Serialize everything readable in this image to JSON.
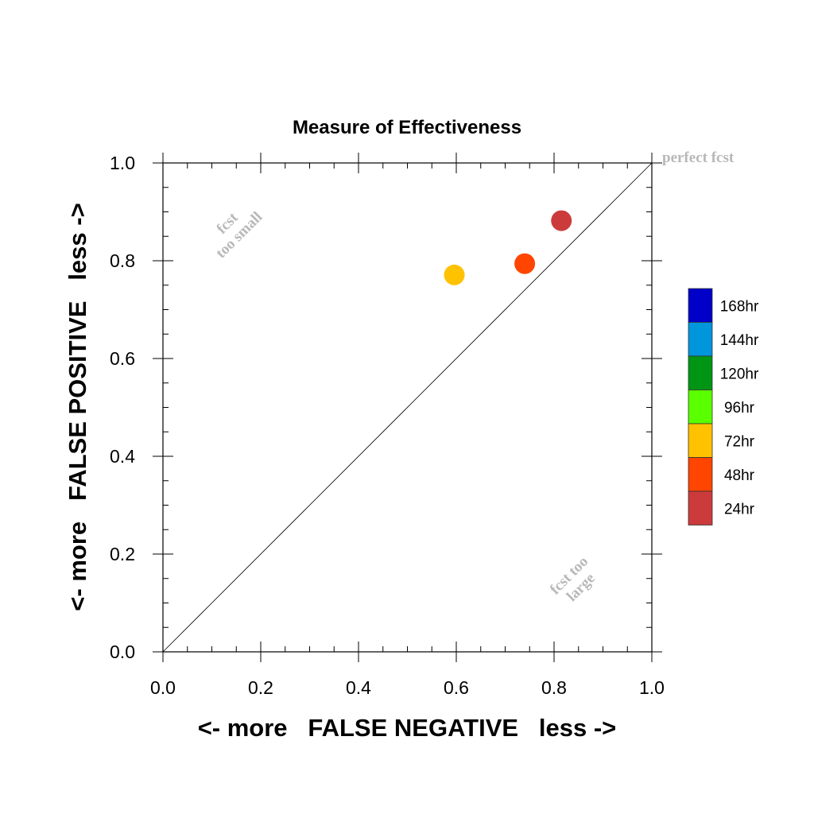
{
  "chart_data": {
    "type": "scatter",
    "title": "Measure of Effectiveness",
    "xlabel": "<- more   FALSE NEGATIVE   less ->",
    "ylabel": "<- more   FALSE POSITIVE   less ->",
    "xlim": [
      0.0,
      1.0
    ],
    "ylim": [
      0.0,
      1.0
    ],
    "xticks": [
      "0.0",
      "0.2",
      "0.4",
      "0.6",
      "0.8",
      "1.0"
    ],
    "yticks": [
      "0.0",
      "0.2",
      "0.4",
      "0.6",
      "0.8",
      "1.0"
    ],
    "grid": false,
    "reference_line": {
      "from": [
        0.0,
        0.0
      ],
      "to": [
        1.0,
        1.0
      ]
    },
    "annotations": {
      "perfect": "perfect fcst",
      "too_small_1": "fcst",
      "too_small_2": "too small",
      "too_large_1": "fcst too",
      "too_large_2": "large"
    },
    "points": [
      {
        "lead": "24hr",
        "x": 0.815,
        "y": 0.882,
        "color": "#cc3b3b"
      },
      {
        "lead": "48hr",
        "x": 0.74,
        "y": 0.794,
        "color": "#ff4500"
      },
      {
        "lead": "72hr",
        "x": 0.596,
        "y": 0.771,
        "color": "#ffc200"
      }
    ],
    "legend": {
      "position": "right",
      "items": [
        {
          "label": "168hr",
          "color": "#0000c8"
        },
        {
          "label": "144hr",
          "color": "#0096dc"
        },
        {
          "label": "120hr",
          "color": "#009614"
        },
        {
          "label": "96hr",
          "color": "#5aff00"
        },
        {
          "label": "72hr",
          "color": "#ffc200"
        },
        {
          "label": "48hr",
          "color": "#ff4500"
        },
        {
          "label": "24hr",
          "color": "#cc3b3b"
        }
      ]
    }
  }
}
